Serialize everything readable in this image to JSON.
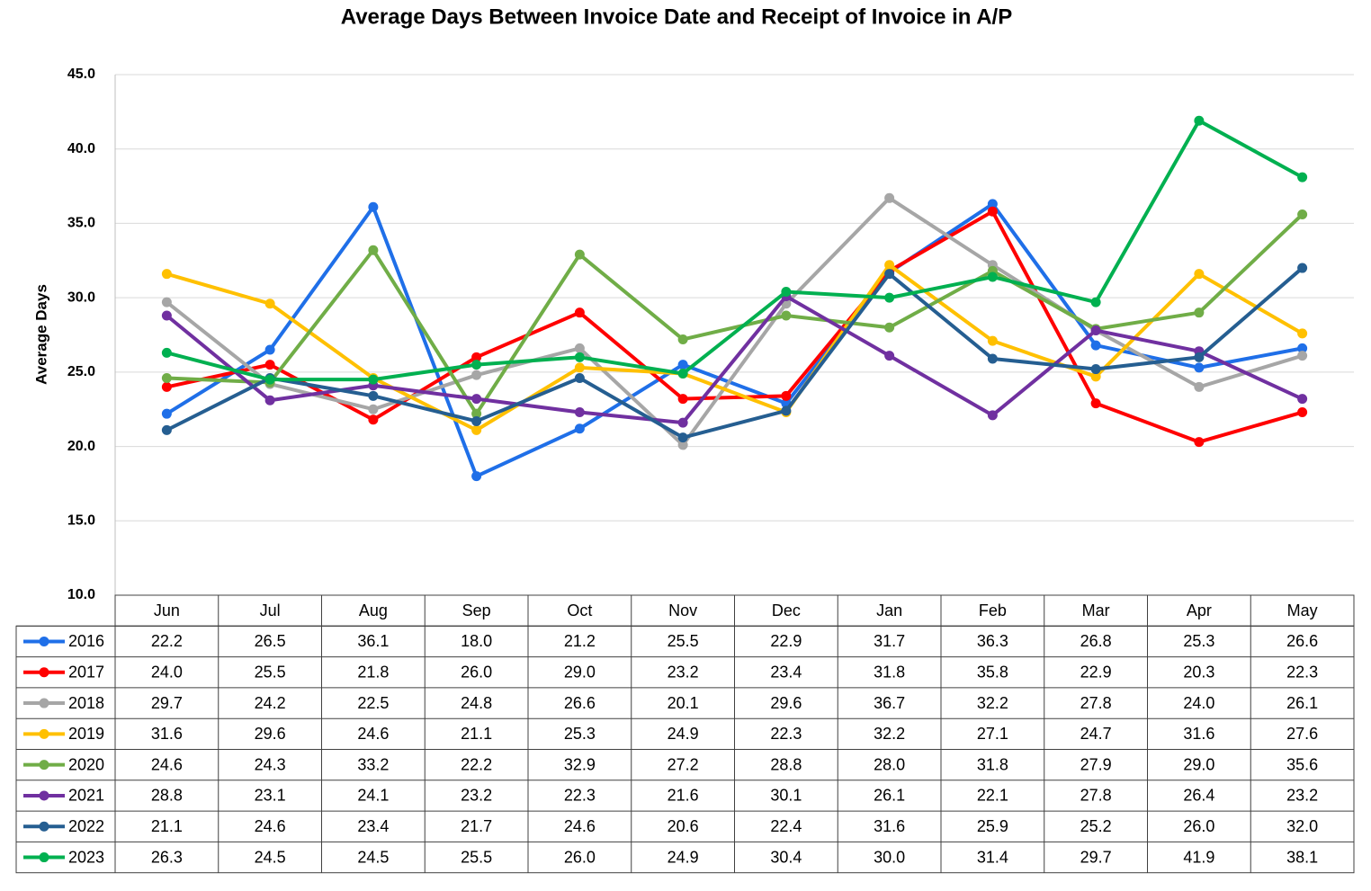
{
  "chart_data": {
    "type": "line",
    "title": "Average Days Between Invoice Date and Receipt of Invoice in A/P",
    "y_label": "Average Days",
    "categories": [
      "Jun",
      "Jul",
      "Aug",
      "Sep",
      "Oct",
      "Nov",
      "Dec",
      "Jan",
      "Feb",
      "Mar",
      "Apr",
      "May"
    ],
    "ylim": [
      10,
      45
    ],
    "yticks": [
      {
        "value": 10,
        "label": "10.0"
      },
      {
        "value": 15,
        "label": "15.0"
      },
      {
        "value": 20,
        "label": "20.0"
      },
      {
        "value": 25,
        "label": "25.0"
      },
      {
        "value": 30,
        "label": "30.0"
      },
      {
        "value": 35,
        "label": "35.0"
      },
      {
        "value": 40,
        "label": "40.0"
      },
      {
        "value": 45,
        "label": "45.0"
      }
    ],
    "grid": true,
    "series": [
      {
        "name": "2016",
        "color": "#1f6fe8",
        "values": [
          22.2,
          26.5,
          36.1,
          18,
          21.2,
          25.5,
          22.9,
          31.7,
          36.3,
          26.8,
          25.3,
          26.6
        ],
        "value_labels": [
          "22.2",
          "26.5",
          "36.1",
          "18.0",
          "21.2",
          "25.5",
          "22.9",
          "31.7",
          "36.3",
          "26.8",
          "25.3",
          "26.6"
        ]
      },
      {
        "name": "2017",
        "color": "#ff0000",
        "values": [
          24,
          25.5,
          21.8,
          26,
          29,
          23.2,
          23.4,
          31.8,
          35.8,
          22.9,
          20.3,
          22.3
        ],
        "value_labels": [
          "24.0",
          "25.5",
          "21.8",
          "26.0",
          "29.0",
          "23.2",
          "23.4",
          "31.8",
          "35.8",
          "22.9",
          "20.3",
          "22.3"
        ]
      },
      {
        "name": "2018",
        "color": "#a6a6a6",
        "values": [
          29.7,
          24.2,
          22.5,
          24.8,
          26.6,
          20.1,
          29.6,
          36.7,
          32.2,
          27.8,
          24,
          26.1
        ],
        "value_labels": [
          "29.7",
          "24.2",
          "22.5",
          "24.8",
          "26.6",
          "20.1",
          "29.6",
          "36.7",
          "32.2",
          "27.8",
          "24.0",
          "26.1"
        ]
      },
      {
        "name": "2019",
        "color": "#ffc000",
        "values": [
          31.6,
          29.6,
          24.6,
          21.1,
          25.3,
          24.9,
          22.3,
          32.2,
          27.1,
          24.7,
          31.6,
          27.6
        ],
        "value_labels": [
          "31.6",
          "29.6",
          "24.6",
          "21.1",
          "25.3",
          "24.9",
          "22.3",
          "32.2",
          "27.1",
          "24.7",
          "31.6",
          "27.6"
        ]
      },
      {
        "name": "2020",
        "color": "#70ad47",
        "values": [
          24.6,
          24.3,
          33.2,
          22.2,
          32.9,
          27.2,
          28.8,
          28,
          31.8,
          27.9,
          29,
          35.6
        ],
        "value_labels": [
          "24.6",
          "24.3",
          "33.2",
          "22.2",
          "32.9",
          "27.2",
          "28.8",
          "28.0",
          "31.8",
          "27.9",
          "29.0",
          "35.6"
        ]
      },
      {
        "name": "2021",
        "color": "#7030a0",
        "values": [
          28.8,
          23.1,
          24.1,
          23.2,
          22.3,
          21.6,
          30.1,
          26.1,
          22.1,
          27.8,
          26.4,
          23.2
        ],
        "value_labels": [
          "28.8",
          "23.1",
          "24.1",
          "23.2",
          "22.3",
          "21.6",
          "30.1",
          "26.1",
          "22.1",
          "27.8",
          "26.4",
          "23.2"
        ]
      },
      {
        "name": "2022",
        "color": "#255e91",
        "values": [
          21.1,
          24.6,
          23.4,
          21.7,
          24.6,
          20.6,
          22.4,
          31.6,
          25.9,
          25.2,
          26,
          32
        ],
        "value_labels": [
          "21.1",
          "24.6",
          "23.4",
          "21.7",
          "24.6",
          "20.6",
          "22.4",
          "31.6",
          "25.9",
          "25.2",
          "26.0",
          "32.0"
        ]
      },
      {
        "name": "2023",
        "color": "#00b050",
        "values": [
          26.3,
          24.5,
          24.5,
          25.5,
          26,
          24.9,
          30.4,
          30,
          31.4,
          29.7,
          41.9,
          38.1
        ],
        "value_labels": [
          "26.3",
          "24.5",
          "24.5",
          "25.5",
          "26.0",
          "24.9",
          "30.4",
          "30.0",
          "31.4",
          "29.7",
          "41.9",
          "38.1"
        ]
      }
    ]
  }
}
